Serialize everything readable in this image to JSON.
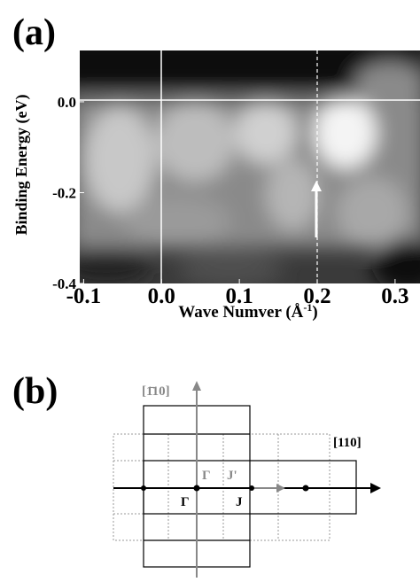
{
  "panel_a": {
    "label": "(a)",
    "y_label": "Binding Energy (eV)",
    "x_label": {
      "text": "Wave Numver (Å",
      "superscript": "-1",
      "close": ")"
    },
    "xlim": [
      -0.105,
      0.332
    ],
    "ylim": [
      -0.4,
      0.113
    ],
    "xticks": [
      {
        "value": -0.1,
        "label": "-0.1"
      },
      {
        "value": 0,
        "label": "0.0"
      },
      {
        "value": 0.1,
        "label": "0.1"
      },
      {
        "value": 0.2,
        "label": "0.2"
      },
      {
        "value": 0.3,
        "label": "0.3"
      }
    ],
    "yticks": [
      {
        "value": 0,
        "label": "0.0"
      },
      {
        "value": -0.2,
        "label": "-0.2"
      },
      {
        "value": -0.4,
        "label": "-0.4"
      }
    ]
  },
  "panel_b": {
    "label": "(b)",
    "axis_labels": [
      "[1̄10]",
      "[110]"
    ],
    "points": [
      "Γ",
      "J'",
      "Γ",
      "J"
    ]
  }
}
